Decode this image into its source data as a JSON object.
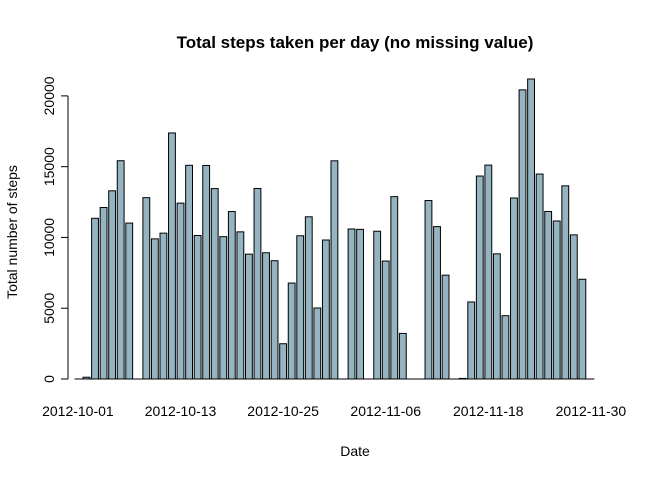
{
  "chart_data": {
    "type": "bar",
    "title": "Total steps taken per day (no missing value)",
    "xlabel": "Date",
    "ylabel": "Total number of steps",
    "ylim": [
      0,
      21194
    ],
    "yticks": [
      0,
      5000,
      10000,
      15000,
      20000
    ],
    "ytick_labels": [
      "0",
      "5000",
      "10000",
      "15000",
      "20000"
    ],
    "xtick_labels": [
      "2012-10-01",
      "2012-10-13",
      "2012-10-25",
      "2012-11-06",
      "2012-11-18",
      "2012-11-30"
    ],
    "grid": false,
    "bar_color": "#95b4c1",
    "categories": [
      "2012-10-01",
      "2012-10-02",
      "2012-10-03",
      "2012-10-04",
      "2012-10-05",
      "2012-10-06",
      "2012-10-07",
      "2012-10-08",
      "2012-10-09",
      "2012-10-10",
      "2012-10-11",
      "2012-10-12",
      "2012-10-13",
      "2012-10-14",
      "2012-10-15",
      "2012-10-16",
      "2012-10-17",
      "2012-10-18",
      "2012-10-19",
      "2012-10-20",
      "2012-10-21",
      "2012-10-22",
      "2012-10-23",
      "2012-10-24",
      "2012-10-25",
      "2012-10-26",
      "2012-10-27",
      "2012-10-28",
      "2012-10-29",
      "2012-10-30",
      "2012-10-31",
      "2012-11-01",
      "2012-11-02",
      "2012-11-03",
      "2012-11-04",
      "2012-11-05",
      "2012-11-06",
      "2012-11-07",
      "2012-11-08",
      "2012-11-09",
      "2012-11-10",
      "2012-11-11",
      "2012-11-12",
      "2012-11-13",
      "2012-11-14",
      "2012-11-15",
      "2012-11-16",
      "2012-11-17",
      "2012-11-18",
      "2012-11-19",
      "2012-11-20",
      "2012-11-21",
      "2012-11-22",
      "2012-11-23",
      "2012-11-24",
      "2012-11-25",
      "2012-11-26",
      "2012-11-27",
      "2012-11-28",
      "2012-11-29",
      "2012-11-30"
    ],
    "values": [
      0,
      126,
      11352,
      12116,
      13294,
      15420,
      11015,
      0,
      12811,
      9900,
      10304,
      17382,
      12426,
      15098,
      10139,
      15084,
      13452,
      10056,
      11829,
      10395,
      8821,
      13460,
      8918,
      8355,
      2492,
      6778,
      10119,
      11458,
      5018,
      9819,
      15414,
      0,
      10600,
      10571,
      0,
      10439,
      8334,
      12883,
      3219,
      0,
      0,
      12608,
      10765,
      7336,
      0,
      41,
      5441,
      14339,
      15110,
      8841,
      4472,
      12787,
      20427,
      21194,
      14478,
      11834,
      11162,
      13646,
      10183,
      7047,
      0
    ]
  }
}
